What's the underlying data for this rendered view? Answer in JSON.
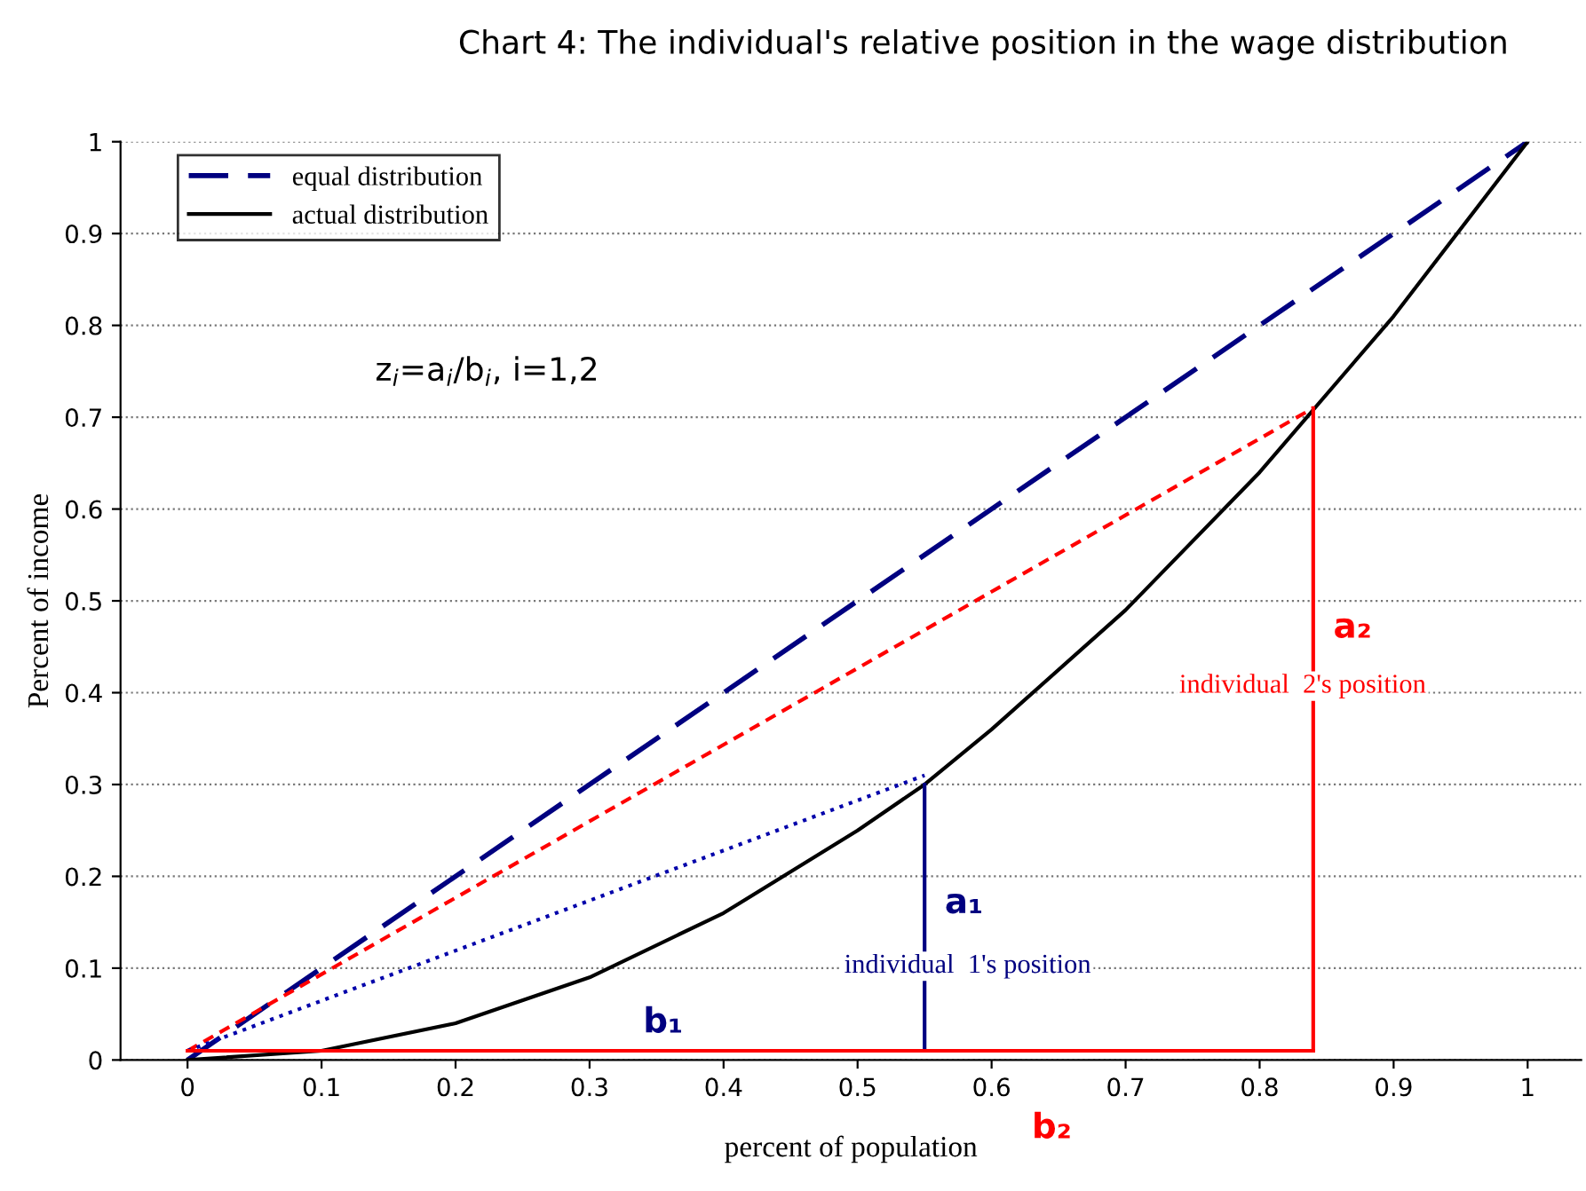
{
  "chart_data": {
    "type": "line",
    "title": "Chart 4: The individual's relative position in the wage distribution",
    "xlabel": "percent of population",
    "ylabel": "Percent of income",
    "xlim": [
      -0.05,
      1.04
    ],
    "xticks": [
      0,
      0.1,
      0.2,
      0.3,
      0.4,
      0.5,
      0.6,
      0.7,
      0.8,
      0.9,
      1
    ],
    "ylim": [
      0,
      1
    ],
    "yticks": [
      0,
      0.1,
      0.2,
      0.3,
      0.4,
      0.5,
      0.6,
      0.7,
      0.8,
      0.9,
      1
    ],
    "grid": "y",
    "legend": "top left",
    "marker": "none",
    "series": [
      {
        "name": "equal distribution",
        "color": "#000080",
        "line_style": "dashed",
        "x": [
          0,
          1
        ],
        "values": [
          0,
          1
        ]
      },
      {
        "name": "actual distribution",
        "color": "#000000",
        "line_style": "solid",
        "x": [
          0,
          0.1,
          0.2,
          0.3,
          0.4,
          0.5,
          0.55,
          0.6,
          0.7,
          0.8,
          0.9,
          1
        ],
        "values": [
          0,
          0.01,
          0.04,
          0.09,
          0.16,
          0.25,
          0.3,
          0.36,
          0.49,
          0.64,
          0.81,
          1
        ]
      },
      {
        "color": "#ff0000",
        "line_style": "dashed",
        "x": [
          0,
          0.84
        ],
        "values": [
          0.01,
          0.71
        ]
      },
      {
        "color": "#0000aa",
        "line_style": "dotted",
        "x": [
          0,
          0.55
        ],
        "values": [
          0.01,
          0.31
        ]
      },
      {
        "color": "#000080",
        "line_style": "solid",
        "x": [
          0.55,
          0.55
        ],
        "values": [
          0.01,
          0.3
        ]
      },
      {
        "color": "#ff0000",
        "line_style": "solid",
        "x": [
          0.84,
          0.84
        ],
        "values": [
          0.01,
          0.71
        ]
      },
      {
        "color": "#ff0000",
        "line_style": "solid",
        "x": [
          0,
          0.84
        ],
        "values": [
          0.01,
          0.01
        ]
      }
    ],
    "annotations": [
      "z$_{i}$=a$_{i}$/b$_{i}$, i=1,2",
      "a₁",
      "individual  1's position",
      "b₁",
      "a₂",
      "individual  2's position",
      "b₂"
    ]
  }
}
